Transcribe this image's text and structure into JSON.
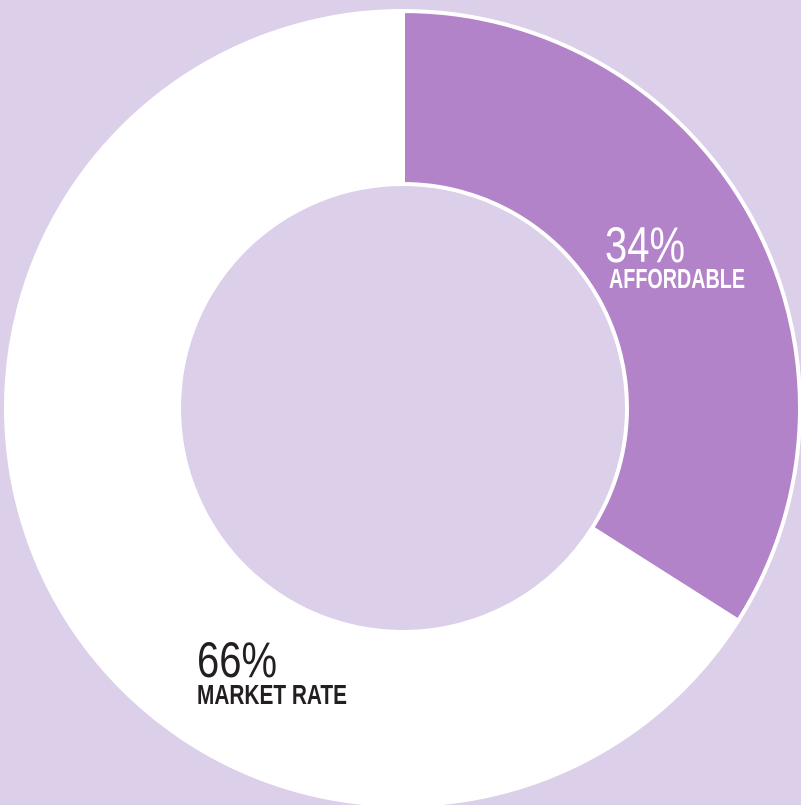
{
  "chart_data": {
    "type": "donut",
    "categories": [
      "AFFORDABLE",
      "MARKET RATE"
    ],
    "values": [
      34,
      66
    ],
    "value_labels": [
      "34%",
      "66%"
    ],
    "colors": [
      "#b283c8",
      "#ffffff"
    ]
  }
}
